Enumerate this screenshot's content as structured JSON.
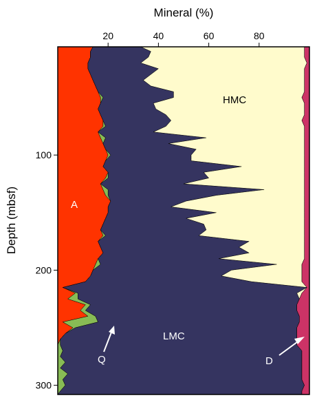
{
  "chart_data": {
    "type": "area",
    "stacked": true,
    "xlabel": "Mineral (%)",
    "ylabel": "Depth (mbsf)",
    "xlim": [
      0,
      100
    ],
    "ylim": [
      308,
      6
    ],
    "x_ticks": [
      20,
      40,
      60,
      80
    ],
    "y_ticks": [
      100,
      200,
      300
    ],
    "depth": [
      6,
      10,
      15,
      20,
      25,
      30,
      35,
      40,
      45,
      50,
      55,
      60,
      65,
      70,
      75,
      80,
      85,
      90,
      95,
      100,
      105,
      110,
      115,
      120,
      125,
      130,
      135,
      140,
      145,
      150,
      155,
      160,
      165,
      170,
      175,
      180,
      185,
      190,
      195,
      200,
      205,
      210,
      215,
      220,
      225,
      230,
      235,
      240,
      245,
      250,
      255,
      260,
      265,
      270,
      275,
      280,
      285,
      290,
      295,
      300,
      305,
      308
    ],
    "series": [
      {
        "name": "A",
        "color": "#ff3300",
        "values": [
          14,
          13,
          13,
          12,
          12,
          13,
          14,
          15,
          16,
          17,
          17,
          16,
          17,
          18,
          18,
          16,
          17,
          18,
          19,
          20,
          19,
          18,
          20,
          19,
          17,
          18,
          19,
          21,
          20,
          20,
          19,
          18,
          17,
          18,
          16,
          17,
          18,
          16,
          15,
          14,
          13,
          11,
          2,
          7,
          4,
          11,
          9,
          12,
          2,
          6,
          3,
          1,
          0,
          0,
          0,
          0,
          0,
          0,
          0,
          0,
          0,
          0
        ]
      },
      {
        "name": "Q",
        "color": "#88bb55",
        "values": [
          0,
          0,
          0,
          0,
          0,
          0,
          0,
          0,
          0,
          1,
          0,
          0,
          0,
          0,
          1,
          0,
          2,
          0,
          0,
          1,
          0,
          0,
          0,
          1,
          0,
          2,
          1,
          0,
          0,
          0,
          0,
          0,
          0,
          1,
          0,
          0,
          0,
          0,
          2,
          0,
          0,
          0,
          0,
          1,
          4,
          2,
          2,
          3,
          14,
          1,
          0,
          0,
          1,
          2,
          1,
          3,
          1,
          4,
          2,
          3,
          1,
          0
        ]
      },
      {
        "name": "LMC",
        "color": "#353460",
        "values": [
          19,
          24,
          23,
          21,
          28,
          24,
          20,
          22,
          30,
          28,
          21,
          23,
          26,
          27,
          24,
          22,
          40,
          26,
          36,
          32,
          34,
          55,
          38,
          40,
          33,
          62,
          43,
          30,
          25,
          43,
          32,
          40,
          42,
          37,
          60,
          55,
          58,
          48,
          70,
          55,
          52,
          66,
          97,
          87,
          88,
          82,
          84,
          81,
          80,
          88,
          92,
          94,
          94,
          95,
          96,
          94,
          96,
          93,
          95,
          95,
          96,
          97
        ]
      },
      {
        "name": "HMC",
        "color": "#fffbcc",
        "values": [
          65,
          61,
          62,
          66,
          58,
          61,
          64,
          61,
          52,
          51,
          60,
          59,
          55,
          52,
          55,
          60,
          39,
          54,
          43,
          45,
          45,
          25,
          40,
          38,
          48,
          16,
          35,
          47,
          53,
          35,
          47,
          40,
          39,
          42,
          22,
          26,
          22,
          34,
          10,
          28,
          32,
          20,
          0,
          2,
          0,
          0,
          0,
          0,
          0,
          0,
          0,
          0,
          0,
          0,
          0,
          0,
          0,
          0,
          0,
          0,
          0,
          0
        ]
      },
      {
        "name": "D",
        "color": "#cc3366",
        "values": [
          2,
          2,
          2,
          1,
          2,
          2,
          2,
          2,
          2,
          3,
          2,
          2,
          2,
          3,
          2,
          2,
          2,
          2,
          2,
          2,
          2,
          2,
          2,
          2,
          2,
          2,
          2,
          2,
          2,
          2,
          2,
          2,
          2,
          2,
          2,
          2,
          2,
          2,
          3,
          3,
          3,
          3,
          1,
          3,
          4,
          5,
          5,
          4,
          4,
          5,
          5,
          5,
          5,
          3,
          3,
          3,
          3,
          3,
          3,
          2,
          3,
          3
        ]
      }
    ],
    "labels": {
      "A": "A",
      "HMC": "HMC",
      "LMC": "LMC",
      "Q": "Q",
      "D": "D"
    },
    "grid": false,
    "legend": "none"
  }
}
